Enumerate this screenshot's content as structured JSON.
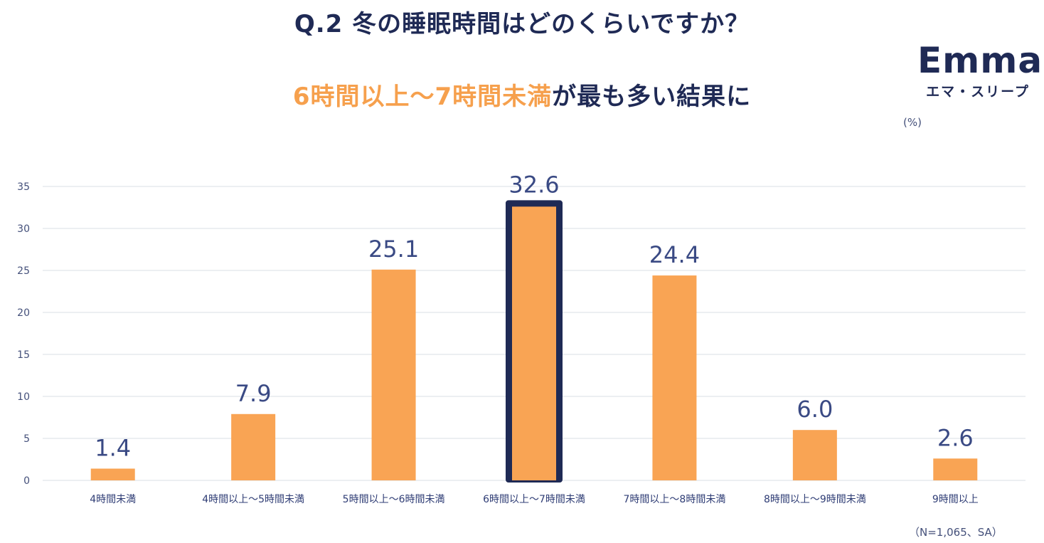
{
  "title": "Q.2 冬の睡眠時間はどのくらいですか？",
  "subtitle": {
    "highlight": "6時間以上〜7時間未満",
    "rest": "が最も多い結果に"
  },
  "logo": {
    "brand": "Emma",
    "sub": "エマ・スリープ"
  },
  "unit_label": "(%)",
  "sample_note": "（N=1,065、SA）",
  "colors": {
    "bar": "#f9a454",
    "highlight_border": "#1f2a55",
    "grid": "#d9dfe6",
    "text": "#1f2a55"
  },
  "chart_data": {
    "type": "bar",
    "title": "Q.2 冬の睡眠時間はどのくらいですか？",
    "xlabel": "",
    "ylabel": "(%)",
    "ylim": [
      0,
      35
    ],
    "yticks": [
      0,
      5,
      10,
      15,
      20,
      25,
      30,
      35
    ],
    "grid": true,
    "categories": [
      "4時間未満",
      "4時間以上〜5時間未満",
      "5時間以上〜6時間未満",
      "6時間以上〜7時間未満",
      "7時間以上〜8時間未満",
      "8時間以上〜9時間未満",
      "9時間以上"
    ],
    "values": [
      1.4,
      7.9,
      25.1,
      32.6,
      24.4,
      6.0,
      2.6
    ],
    "value_labels": [
      "1.4",
      "7.9",
      "25.1",
      "32.6",
      "24.4",
      "6.0",
      "2.6"
    ],
    "highlighted_category": "6時間以上〜7時間未満"
  }
}
